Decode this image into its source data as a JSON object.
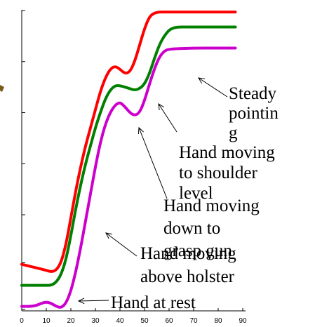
{
  "chart_data": {
    "type": "line",
    "title": "",
    "xlabel": "",
    "ylabel": "",
    "xlim": [
      0,
      90
    ],
    "xticks": [
      0,
      10,
      20,
      30,
      40,
      50,
      60,
      70,
      80,
      90
    ],
    "yticks_labeled": false,
    "grid": false,
    "legend": "none",
    "series": [
      {
        "color": "#ff0000",
        "x": [
          0,
          5,
          10,
          12,
          14,
          16,
          18,
          20,
          22,
          24,
          26,
          28,
          30,
          32,
          34,
          36,
          38,
          40,
          42,
          44,
          46,
          48,
          50,
          52,
          54,
          56,
          58,
          60,
          70,
          80,
          87
        ],
        "y": [
          1.55,
          1.45,
          1.35,
          1.3,
          1.35,
          1.6,
          2.2,
          3.1,
          4.0,
          4.8,
          5.5,
          6.1,
          6.7,
          7.3,
          7.75,
          8.05,
          8.15,
          8.05,
          7.9,
          7.95,
          8.3,
          8.85,
          9.4,
          9.8,
          9.92,
          9.95,
          9.95,
          9.95,
          9.95,
          9.95,
          9.95
        ]
      },
      {
        "color": "#008000",
        "x": [
          0,
          5,
          10,
          12,
          14,
          16,
          18,
          20,
          22,
          24,
          26,
          28,
          30,
          32,
          34,
          36,
          38,
          40,
          42,
          44,
          46,
          48,
          50,
          52,
          54,
          56,
          58,
          60,
          62,
          64,
          66,
          70,
          80,
          87
        ],
        "y": [
          0.85,
          0.85,
          0.85,
          0.85,
          0.95,
          1.2,
          1.7,
          2.5,
          3.4,
          4.2,
          4.9,
          5.5,
          6.1,
          6.6,
          7.05,
          7.35,
          7.5,
          7.5,
          7.45,
          7.4,
          7.35,
          7.4,
          7.55,
          7.9,
          8.4,
          8.85,
          9.15,
          9.35,
          9.43,
          9.45,
          9.45,
          9.45,
          9.45,
          9.45
        ]
      },
      {
        "color": "#cc00cc",
        "x": [
          0,
          5,
          8,
          10,
          12,
          14,
          16,
          18,
          20,
          22,
          24,
          26,
          28,
          30,
          32,
          34,
          36,
          38,
          40,
          42,
          44,
          46,
          48,
          50,
          52,
          54,
          56,
          58,
          60,
          70,
          80,
          87
        ],
        "y": [
          0.15,
          0.15,
          0.25,
          0.3,
          0.25,
          0.15,
          0.1,
          0.25,
          0.65,
          1.3,
          2.1,
          3.0,
          3.9,
          4.8,
          5.6,
          6.2,
          6.6,
          6.85,
          6.95,
          6.8,
          6.6,
          6.5,
          6.6,
          7.0,
          7.55,
          8.05,
          8.45,
          8.65,
          8.72,
          8.75,
          8.75,
          8.75
        ]
      }
    ],
    "annotations": [
      {
        "lines": [
          "Steady",
          "pointin",
          "g"
        ],
        "target_series": 2,
        "target_x": 53
      },
      {
        "lines": [
          "Hand moving",
          "to shoulder",
          "level"
        ],
        "target_series": 2,
        "target_x": 45
      },
      {
        "lines": [
          "Hand moving",
          "down to",
          "grasp gun"
        ],
        "target_series": 2,
        "target_x": 38
      },
      {
        "lines": [
          "Hand moving",
          "above holster"
        ],
        "target_series": 2,
        "target_x": 28
      },
      {
        "lines": [
          "Hand at rest"
        ],
        "target_series": 2,
        "target_x": 18
      }
    ]
  }
}
